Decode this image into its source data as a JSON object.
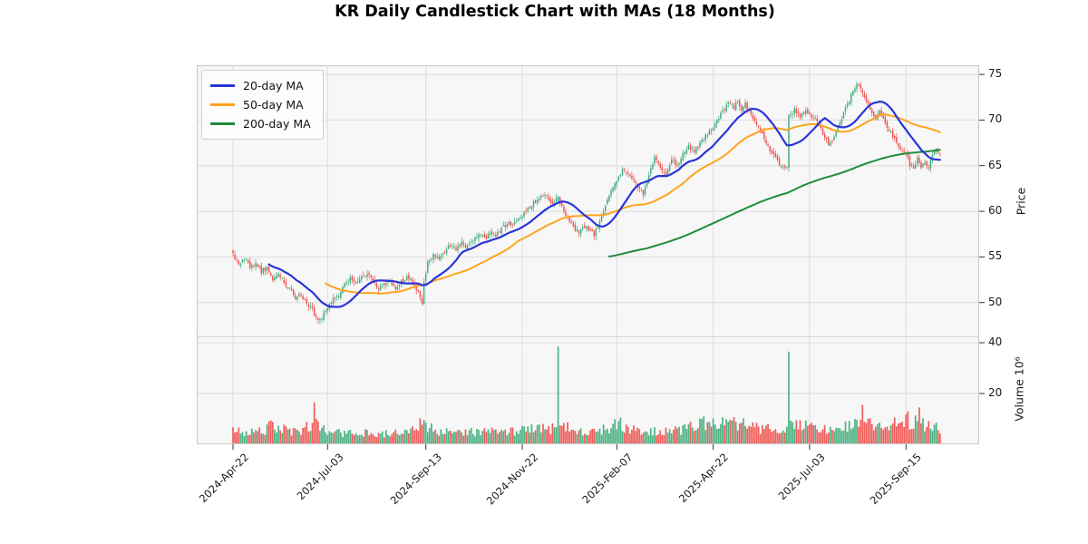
{
  "title": "KR Daily Candlestick Chart with MAs (18 Months)",
  "legend": {
    "items": [
      {
        "label": "20-day MA",
        "color": "#2A35D8"
      },
      {
        "label": "50-day MA",
        "color": "#FFA41C"
      },
      {
        "label": "200-day MA",
        "color": "#1F8C3B"
      }
    ]
  },
  "axes": {
    "price_label": "Price",
    "volume_label": "Volume  10⁶"
  },
  "chart_data": {
    "type": "candlestick",
    "title": "KR Daily Candlestick Chart with MAs (18 Months)",
    "days": 375,
    "price_ylim": [
      46.2,
      76.0
    ],
    "volume_ylim": [
      0,
      42.1
    ],
    "grid": true,
    "legend_position": "upper left",
    "price_ticks": [
      75,
      70,
      65,
      60,
      55,
      50
    ],
    "volume_ticks": [
      40,
      20
    ],
    "date_ticks": [
      {
        "label": "2024-Apr-22",
        "day": 0
      },
      {
        "label": "2024-Jul-03",
        "day": 50
      },
      {
        "label": "2024-Sep-13",
        "day": 102
      },
      {
        "label": "2024-Nov-22",
        "day": 153
      },
      {
        "label": "2025-Feb-07",
        "day": 203
      },
      {
        "label": "2025-Apr-22",
        "day": 254
      },
      {
        "label": "2025-Jul-03",
        "day": 305
      },
      {
        "label": "2025-Sep-15",
        "day": 356
      }
    ],
    "close_keyframes": [
      [
        0,
        55.2
      ],
      [
        3,
        54.4
      ],
      [
        6,
        54.8
      ],
      [
        9,
        53.9
      ],
      [
        12,
        54.3
      ],
      [
        15,
        53.4
      ],
      [
        18,
        53.8
      ],
      [
        21,
        52.6
      ],
      [
        24,
        53.1
      ],
      [
        27,
        52.2
      ],
      [
        30,
        51.4
      ],
      [
        33,
        50.4
      ],
      [
        36,
        50.9
      ],
      [
        39,
        49.9
      ],
      [
        42,
        49.3
      ],
      [
        44,
        48.3
      ],
      [
        46,
        48.0
      ],
      [
        48,
        48.7
      ],
      [
        50,
        49.5
      ],
      [
        53,
        50.3
      ],
      [
        56,
        50.9
      ],
      [
        59,
        51.9
      ],
      [
        62,
        52.6
      ],
      [
        65,
        52.1
      ],
      [
        68,
        52.9
      ],
      [
        71,
        53.2
      ],
      [
        74,
        52.3
      ],
      [
        77,
        51.6
      ],
      [
        80,
        51.9
      ],
      [
        83,
        52.3
      ],
      [
        86,
        51.7
      ],
      [
        89,
        52.2
      ],
      [
        92,
        52.8
      ],
      [
        95,
        52.3
      ],
      [
        98,
        51.2
      ],
      [
        100,
        49.9
      ],
      [
        101,
        52.3
      ],
      [
        103,
        54.3
      ],
      [
        106,
        55.4
      ],
      [
        109,
        55.0
      ],
      [
        112,
        55.7
      ],
      [
        115,
        56.2
      ],
      [
        118,
        55.8
      ],
      [
        121,
        56.6
      ],
      [
        124,
        56.1
      ],
      [
        127,
        56.9
      ],
      [
        130,
        57.5
      ],
      [
        133,
        57.0
      ],
      [
        136,
        57.7
      ],
      [
        139,
        57.4
      ],
      [
        142,
        58.1
      ],
      [
        145,
        58.7
      ],
      [
        148,
        58.4
      ],
      [
        151,
        59.1
      ],
      [
        153,
        59.6
      ],
      [
        156,
        60.2
      ],
      [
        159,
        60.9
      ],
      [
        162,
        61.5
      ],
      [
        165,
        62.0
      ],
      [
        167,
        61.4
      ],
      [
        169,
        61.0
      ],
      [
        172,
        61.6
      ],
      [
        174,
        60.4
      ],
      [
        177,
        59.3
      ],
      [
        180,
        58.2
      ],
      [
        183,
        57.6
      ],
      [
        186,
        58.4
      ],
      [
        189,
        57.9
      ],
      [
        191,
        57.5
      ],
      [
        193,
        58.3
      ],
      [
        195,
        59.3
      ],
      [
        197,
        60.6
      ],
      [
        200,
        62.3
      ],
      [
        203,
        63.4
      ],
      [
        206,
        64.6
      ],
      [
        209,
        64.2
      ],
      [
        212,
        63.6
      ],
      [
        215,
        62.4
      ],
      [
        217,
        61.9
      ],
      [
        219,
        63.2
      ],
      [
        221,
        64.8
      ],
      [
        223,
        66.0
      ],
      [
        226,
        65.0
      ],
      [
        229,
        63.9
      ],
      [
        232,
        65.6
      ],
      [
        235,
        64.9
      ],
      [
        238,
        66.3
      ],
      [
        241,
        67.2
      ],
      [
        244,
        66.6
      ],
      [
        247,
        67.4
      ],
      [
        250,
        68.2
      ],
      [
        254,
        69.2
      ],
      [
        257,
        70.3
      ],
      [
        260,
        71.2
      ],
      [
        263,
        72.0
      ],
      [
        265,
        71.3
      ],
      [
        267,
        72.1
      ],
      [
        269,
        71.0
      ],
      [
        271,
        71.7
      ],
      [
        274,
        70.6
      ],
      [
        277,
        69.6
      ],
      [
        280,
        68.4
      ],
      [
        283,
        67.2
      ],
      [
        286,
        66.2
      ],
      [
        289,
        65.2
      ],
      [
        291,
        64.6
      ],
      [
        293,
        65.0
      ],
      [
        294,
        70.4
      ],
      [
        297,
        71.1
      ],
      [
        300,
        70.4
      ],
      [
        303,
        71.2
      ],
      [
        306,
        70.5
      ],
      [
        309,
        69.7
      ],
      [
        312,
        68.5
      ],
      [
        315,
        67.3
      ],
      [
        317,
        67.8
      ],
      [
        320,
        69.0
      ],
      [
        323,
        70.6
      ],
      [
        326,
        72.2
      ],
      [
        328,
        73.3
      ],
      [
        330,
        73.9
      ],
      [
        332,
        73.3
      ],
      [
        334,
        72.5
      ],
      [
        337,
        71.3
      ],
      [
        340,
        70.2
      ],
      [
        342,
        70.9
      ],
      [
        345,
        69.6
      ],
      [
        348,
        68.5
      ],
      [
        351,
        67.5
      ],
      [
        354,
        66.7
      ],
      [
        356,
        66.1
      ],
      [
        358,
        65.2
      ],
      [
        360,
        64.8
      ],
      [
        362,
        65.7
      ],
      [
        364,
        64.9
      ],
      [
        366,
        65.5
      ],
      [
        368,
        64.9
      ],
      [
        370,
        66.2
      ],
      [
        372,
        66.8
      ],
      [
        374,
        66.4
      ]
    ],
    "volume_keyframes": [
      [
        0,
        5.5
      ],
      [
        8,
        4.5
      ],
      [
        16,
        5.2
      ],
      [
        20,
        7.5
      ],
      [
        24,
        6.5
      ],
      [
        30,
        5.0
      ],
      [
        36,
        5.5
      ],
      [
        41,
        8.0
      ],
      [
        44,
        8.0
      ],
      [
        47,
        6.0
      ],
      [
        52,
        5.0
      ],
      [
        58,
        4.5
      ],
      [
        66,
        4.2
      ],
      [
        74,
        4.5
      ],
      [
        82,
        4.2
      ],
      [
        90,
        4.8
      ],
      [
        97,
        5.5
      ],
      [
        100,
        8.5
      ],
      [
        103,
        7.5
      ],
      [
        108,
        5.5
      ],
      [
        116,
        4.6
      ],
      [
        124,
        4.8
      ],
      [
        132,
        5.2
      ],
      [
        140,
        4.6
      ],
      [
        148,
        5.4
      ],
      [
        155,
        5.8
      ],
      [
        162,
        6.5
      ],
      [
        168,
        6.2
      ],
      [
        174,
        7.0
      ],
      [
        180,
        6.0
      ],
      [
        188,
        5.2
      ],
      [
        195,
        5.4
      ],
      [
        200,
        7.0
      ],
      [
        204,
        8.0
      ],
      [
        210,
        6.5
      ],
      [
        218,
        5.2
      ],
      [
        226,
        4.8
      ],
      [
        234,
        5.6
      ],
      [
        240,
        6.5
      ],
      [
        246,
        9.5
      ],
      [
        252,
        8.5
      ],
      [
        258,
        8.0
      ],
      [
        265,
        9.0
      ],
      [
        272,
        7.2
      ],
      [
        280,
        6.2
      ],
      [
        288,
        5.8
      ],
      [
        293,
        6.5
      ],
      [
        297,
        9.0
      ],
      [
        303,
        6.8
      ],
      [
        310,
        6.0
      ],
      [
        318,
        6.5
      ],
      [
        325,
        7.5
      ],
      [
        330,
        9.0
      ],
      [
        336,
        8.0
      ],
      [
        342,
        7.0
      ],
      [
        348,
        7.5
      ],
      [
        354,
        8.5
      ],
      [
        359,
        9.5
      ],
      [
        365,
        8.0
      ],
      [
        370,
        7.0
      ],
      [
        374,
        6.5
      ]
    ],
    "volume_spikes": [
      [
        43,
        16.5
      ],
      [
        172,
        38.5
      ],
      [
        294,
        36.5
      ],
      [
        333,
        15.5
      ],
      [
        357,
        13.0
      ],
      [
        363,
        14.5
      ]
    ],
    "force_up": [
      172,
      294
    ],
    "force_down": [
      43,
      333,
      357,
      363
    ],
    "ma": [
      {
        "period": 20,
        "color": "#2A35D8",
        "label": "20-day MA"
      },
      {
        "period": 50,
        "color": "#FFA41C",
        "label": "50-day MA"
      },
      {
        "period": 200,
        "color": "#1F8C3B",
        "label": "200-day MA"
      }
    ],
    "colors": {
      "up": "#43AE7C",
      "down": "#EF5350",
      "grid": "#DCDCDC",
      "plot_bg": "#F7F7F8",
      "spine": "#C8C8C8",
      "tick_text": "#1A1A1A"
    },
    "noise": {
      "seed": 20240422,
      "close": 0.25,
      "open": 0.17,
      "wick": 0.42,
      "vol_lo": 0.62,
      "vol_span": 0.76
    }
  }
}
